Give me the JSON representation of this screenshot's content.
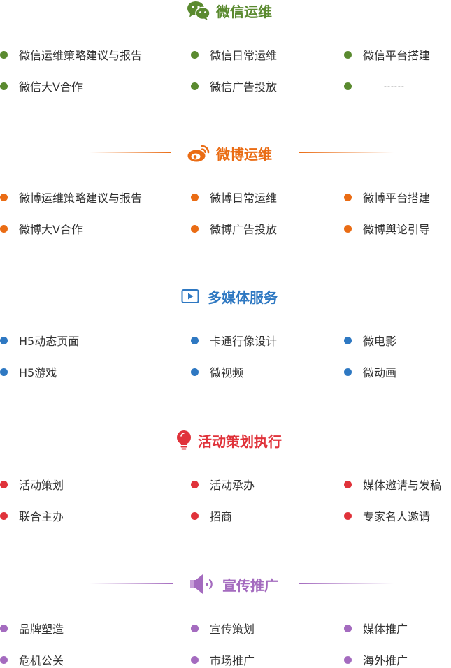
{
  "sections": [
    {
      "id": "wechat",
      "title": "微信运维",
      "icon": "wechat-icon",
      "color": "#5a8a2f",
      "items": [
        "微信运维策略建议与报告",
        "微信日常运维",
        "微信平台搭建",
        "微信大V合作",
        "微信广告投放",
        "------"
      ]
    },
    {
      "id": "weibo",
      "title": "微博运维",
      "icon": "weibo-icon",
      "color": "#ea6c14",
      "items": [
        "微博运维策略建议与报告",
        "微博日常运维",
        "微博平台搭建",
        "微博大V合作",
        "微博广告投放",
        "微博舆论引导"
      ]
    },
    {
      "id": "multimedia",
      "title": "多媒体服务",
      "icon": "video-play-icon",
      "color": "#2e78c2",
      "items": [
        "H5动态页面",
        "卡通行像设计",
        "微电影",
        "H5游戏",
        "微视频",
        "微动画"
      ]
    },
    {
      "id": "event",
      "title": "活动策划执行",
      "icon": "lightbulb-icon",
      "color": "#e0323a",
      "items": [
        "活动策划",
        "活动承办",
        "媒体邀请与发稿",
        "联合主办",
        "招商",
        "专家名人邀请"
      ]
    },
    {
      "id": "promo",
      "title": "宣传推广",
      "icon": "speaker-icon",
      "color": "#a46bbf",
      "items": [
        "品牌塑造",
        "宣传策划",
        "媒体推广",
        "危机公关",
        "市场推广",
        "海外推广"
      ]
    }
  ]
}
